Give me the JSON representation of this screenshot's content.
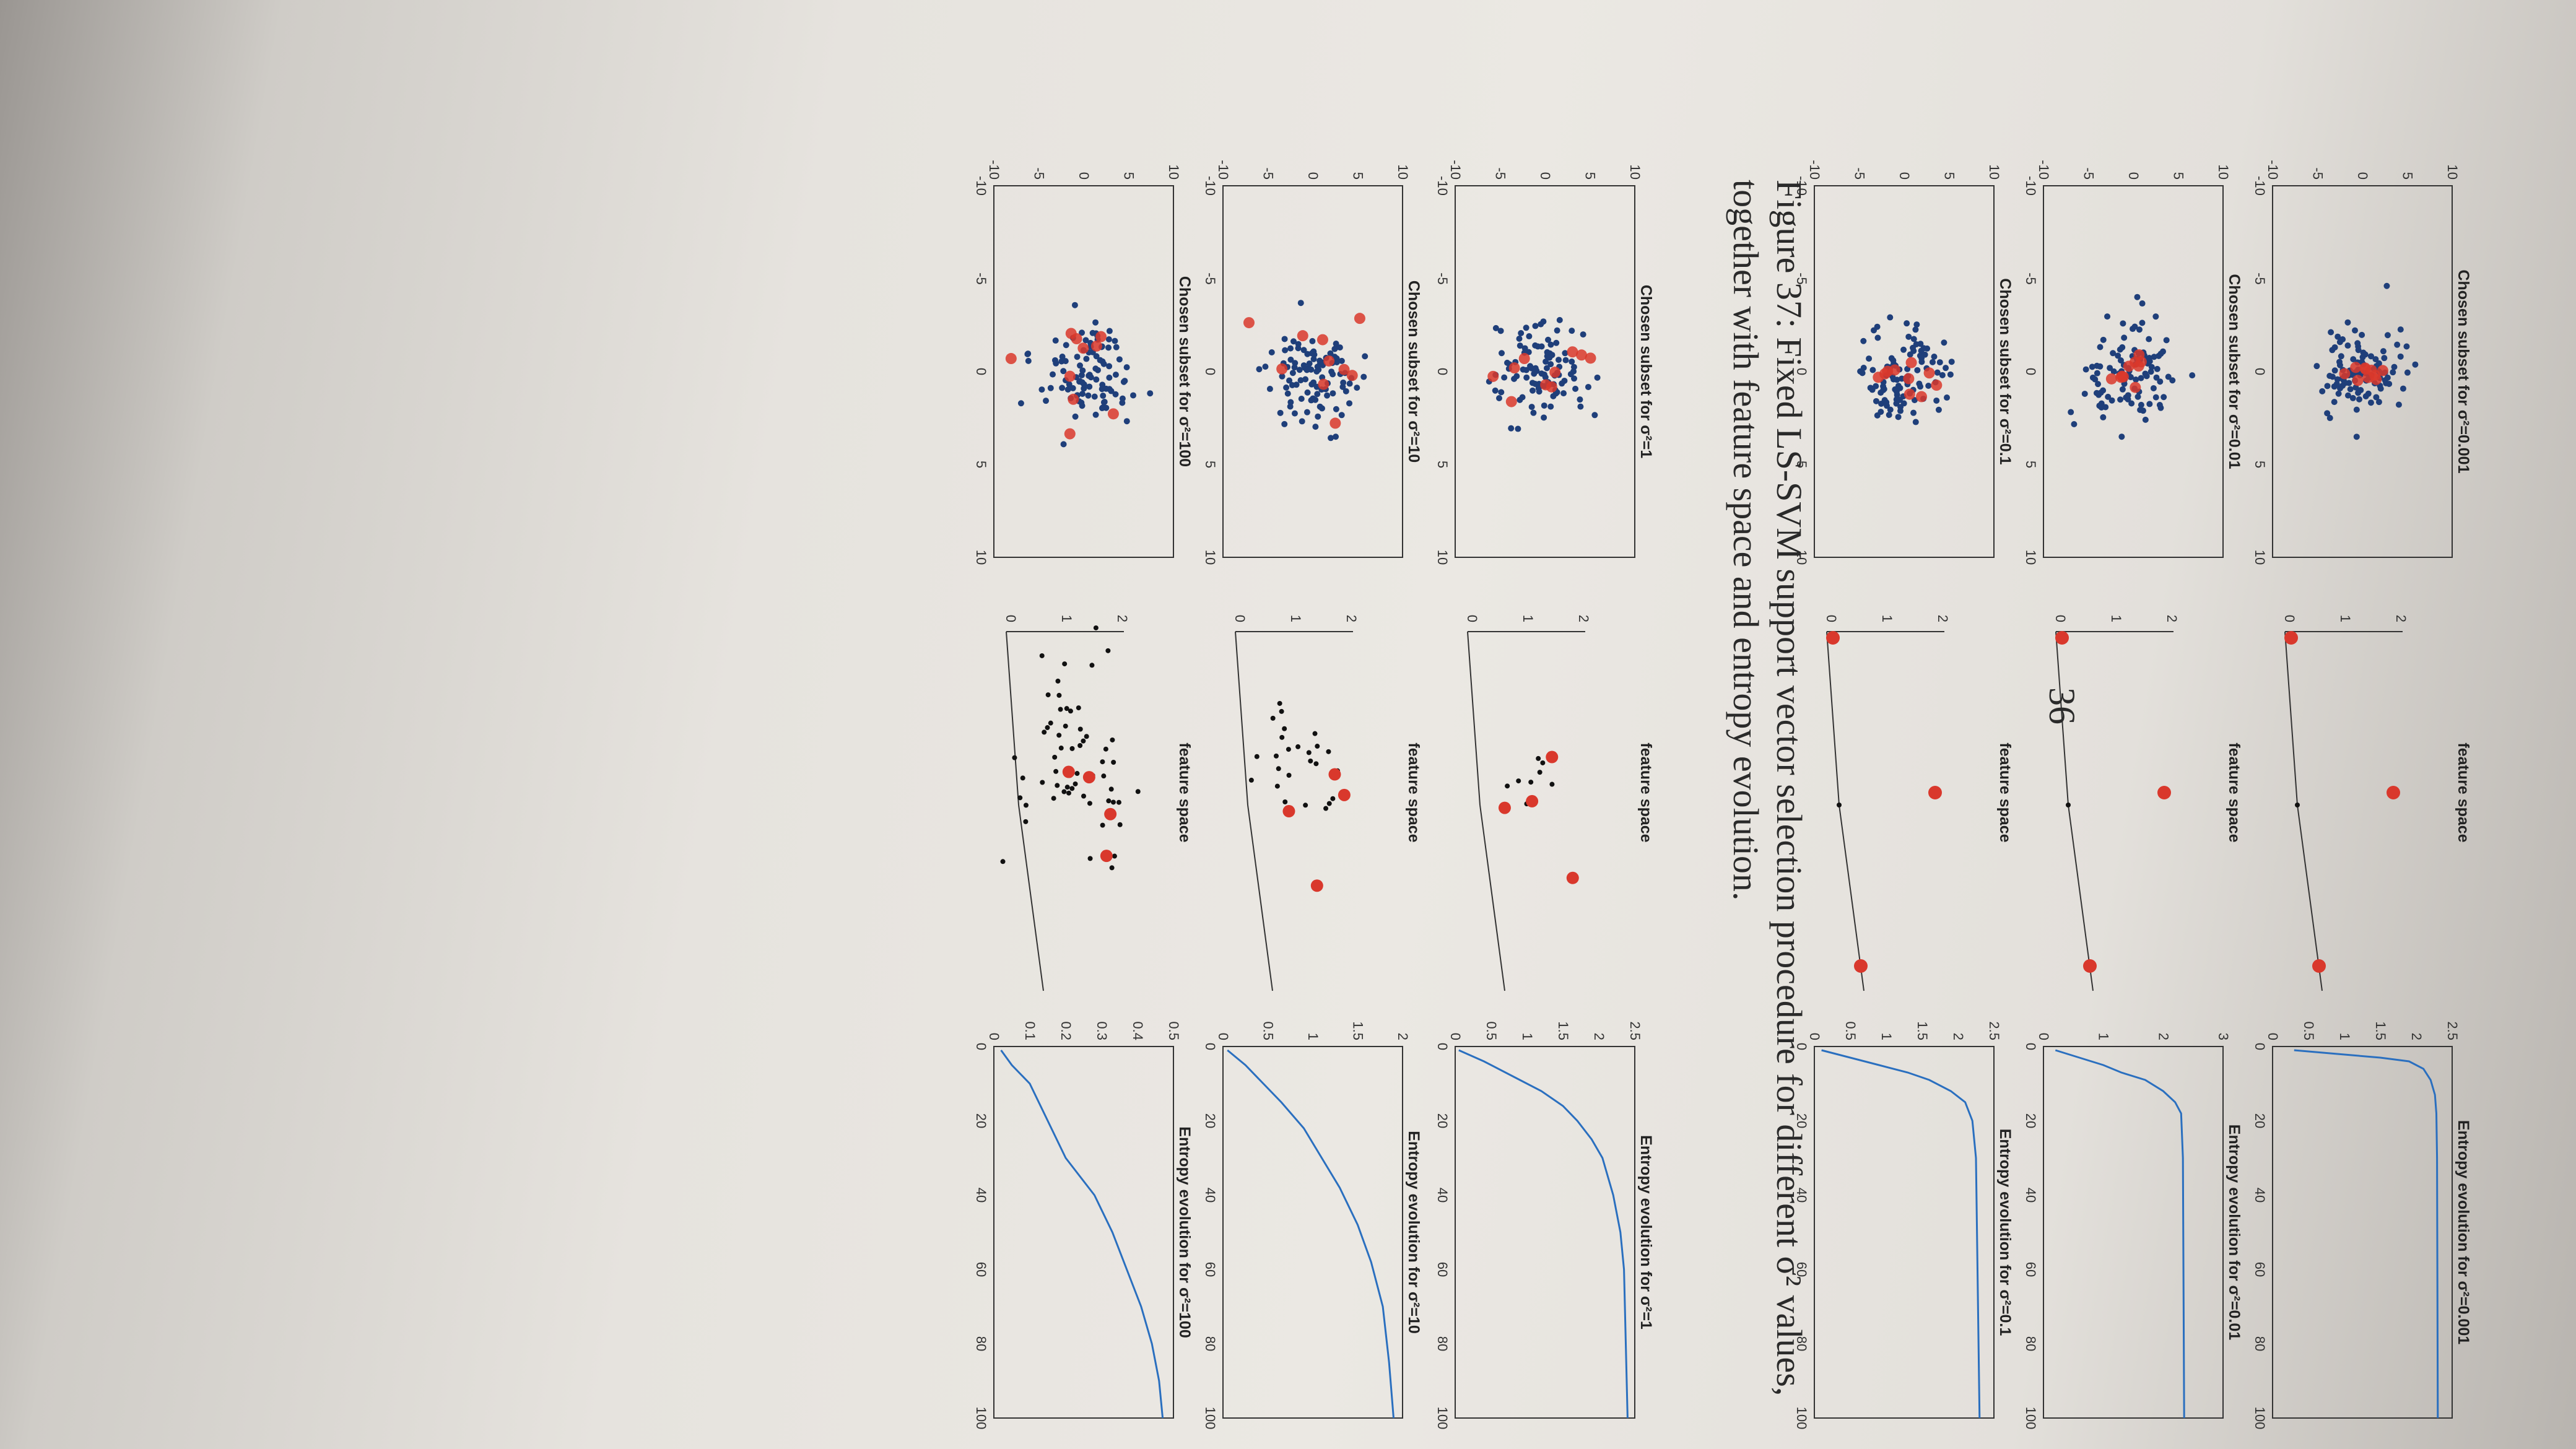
{
  "figure": {
    "rows": [
      {
        "sigma_label": "σ²=0.001",
        "scatter_title": "Chosen subset for σ²=0.001",
        "feature_title": "feature space",
        "entropy_title": "Entropy evolution for σ²=0.001",
        "entropy_yticks": [
          "0",
          "0.5",
          "1",
          "1.5",
          "2",
          "2.5"
        ],
        "entropy_ymax": 2.5,
        "entropy_curve": [
          [
            1,
            0.3
          ],
          [
            2,
            0.9
          ],
          [
            3,
            1.5
          ],
          [
            4,
            1.9
          ],
          [
            6,
            2.1
          ],
          [
            9,
            2.2
          ],
          [
            13,
            2.26
          ],
          [
            18,
            2.28
          ],
          [
            30,
            2.29
          ],
          [
            100,
            2.3
          ]
        ]
      },
      {
        "sigma_label": "σ²=0.01",
        "scatter_title": "Chosen subset for σ²=0.01",
        "feature_title": "feature space",
        "entropy_title": "Entropy evolution for σ²=0.01",
        "entropy_yticks": [
          "0",
          "1",
          "2",
          "3"
        ],
        "entropy_ymax": 3,
        "entropy_curve": [
          [
            1,
            0.2
          ],
          [
            3,
            0.6
          ],
          [
            5,
            1.0
          ],
          [
            7,
            1.3
          ],
          [
            9,
            1.7
          ],
          [
            12,
            2.0
          ],
          [
            15,
            2.2
          ],
          [
            18,
            2.3
          ],
          [
            30,
            2.33
          ],
          [
            100,
            2.35
          ]
        ]
      },
      {
        "sigma_label": "σ²=0.1",
        "scatter_title": "Chosen subset for σ²=0.1",
        "feature_title": "feature space",
        "entropy_title": "Entropy evolution for σ²=0.1",
        "entropy_yticks": [
          "0",
          "0.5",
          "1",
          "1.5",
          "2",
          "2.5"
        ],
        "entropy_ymax": 2.5,
        "entropy_curve": [
          [
            1,
            0.1
          ],
          [
            3,
            0.5
          ],
          [
            5,
            0.9
          ],
          [
            7,
            1.3
          ],
          [
            9,
            1.6
          ],
          [
            12,
            1.9
          ],
          [
            15,
            2.1
          ],
          [
            20,
            2.2
          ],
          [
            30,
            2.25
          ],
          [
            100,
            2.3
          ]
        ]
      },
      {
        "sigma_label": "σ²=1",
        "scatter_title": "Chosen subset for σ²=1",
        "feature_title": "feature space",
        "entropy_title": "Entropy evolution for σ²=1",
        "entropy_yticks": [
          "0",
          "0.5",
          "1",
          "1.5",
          "2",
          "2.5"
        ],
        "entropy_ymax": 2.5,
        "entropy_curve": [
          [
            1,
            0.05
          ],
          [
            4,
            0.4
          ],
          [
            8,
            0.8
          ],
          [
            12,
            1.2
          ],
          [
            16,
            1.5
          ],
          [
            20,
            1.7
          ],
          [
            25,
            1.9
          ],
          [
            30,
            2.05
          ],
          [
            40,
            2.2
          ],
          [
            50,
            2.3
          ],
          [
            60,
            2.35
          ],
          [
            100,
            2.4
          ]
        ]
      },
      {
        "sigma_label": "σ²=10",
        "scatter_title": "Chosen subset for σ²=10",
        "feature_title": "feature space",
        "entropy_title": "Entropy evolution for σ²=10",
        "entropy_yticks": [
          "0",
          "0.5",
          "1",
          "1.5",
          "2"
        ],
        "entropy_ymax": 2,
        "entropy_curve": [
          [
            1,
            0.05
          ],
          [
            5,
            0.25
          ],
          [
            10,
            0.45
          ],
          [
            15,
            0.65
          ],
          [
            22,
            0.9
          ],
          [
            30,
            1.1
          ],
          [
            38,
            1.3
          ],
          [
            48,
            1.5
          ],
          [
            58,
            1.65
          ],
          [
            70,
            1.78
          ],
          [
            85,
            1.85
          ],
          [
            100,
            1.9
          ]
        ]
      },
      {
        "sigma_label": "σ²=100",
        "scatter_title": "Chosen subset for σ²=100",
        "feature_title": "feature space",
        "entropy_title": "Entropy evolution for σ²=100",
        "entropy_yticks": [
          "0",
          "0.1",
          "0.2",
          "0.3",
          "0.4",
          "0.5"
        ],
        "entropy_ymax": 0.5,
        "entropy_curve": [
          [
            1,
            0.02
          ],
          [
            5,
            0.05
          ],
          [
            10,
            0.1
          ],
          [
            20,
            0.15
          ],
          [
            30,
            0.2
          ],
          [
            40,
            0.28
          ],
          [
            50,
            0.33
          ],
          [
            60,
            0.37
          ],
          [
            70,
            0.41
          ],
          [
            80,
            0.44
          ],
          [
            90,
            0.46
          ],
          [
            100,
            0.47
          ]
        ]
      }
    ],
    "scatter_ticks": [
      "-10",
      "-5",
      "0",
      "5",
      "10"
    ],
    "entropy_xticks": [
      "0",
      "20",
      "40",
      "60",
      "80",
      "100"
    ],
    "caption_line1": "Figure 37:  Fixed LS-SVM support vector selection procedure for different σ² values,",
    "caption_line2": "together with feature space and entropy evolution.",
    "page_number": "36",
    "colors": {
      "blue_points": "#1f3f7a",
      "red_points": "#d9382c",
      "curve": "#2a6fbf"
    }
  }
}
